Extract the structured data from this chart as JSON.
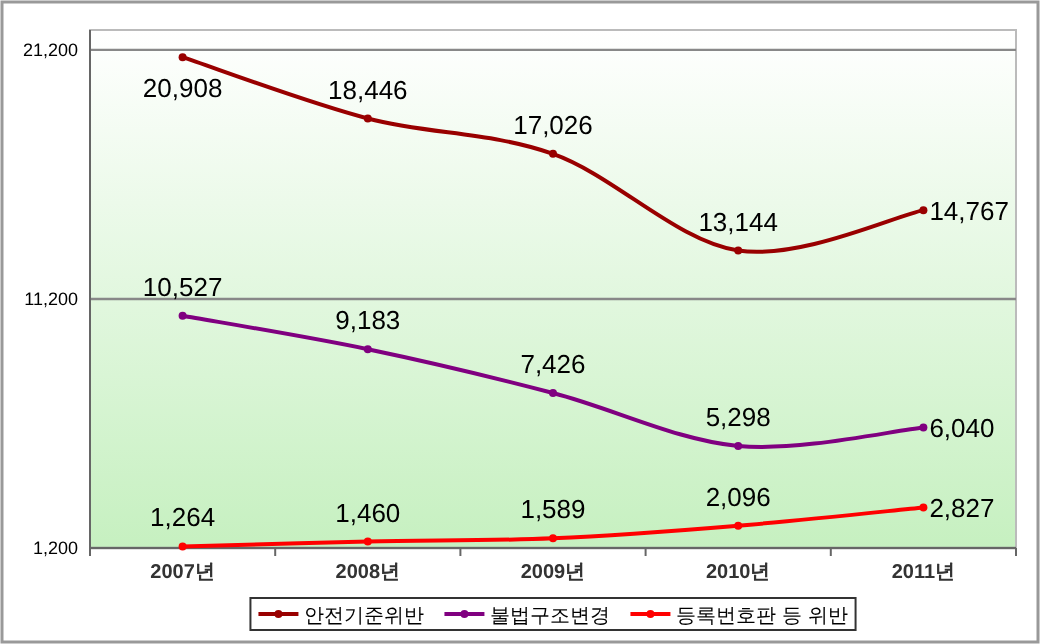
{
  "chart_data": {
    "type": "line",
    "categories": [
      "2007년",
      "2008년",
      "2009년",
      "2010년",
      "2011년"
    ],
    "series": [
      {
        "name": "안전기준위반",
        "color": "#990000",
        "values": [
          20908,
          18446,
          17026,
          13144,
          14767
        ],
        "value_labels": [
          "20,908",
          "18,446",
          "17,026",
          "13,144",
          "14,767"
        ]
      },
      {
        "name": "불법구조변경",
        "color": "#800080",
        "values": [
          10527,
          9183,
          7426,
          5298,
          6040
        ],
        "value_labels": [
          "10,527",
          "9,183",
          "7,426",
          "5,298",
          "6,040"
        ]
      },
      {
        "name": "등록번호판 등 위반",
        "color": "#ff0000",
        "values": [
          1264,
          1460,
          1589,
          2096,
          2827
        ],
        "value_labels": [
          "1,264",
          "1,460",
          "1,589",
          "2,096",
          "2,827"
        ]
      }
    ],
    "ylim": [
      1200,
      22000
    ],
    "yticks": [
      {
        "value": 1200,
        "label": "1,200"
      },
      {
        "value": 11200,
        "label": "11,200"
      },
      {
        "value": 21200,
        "label": "21,200"
      }
    ],
    "grid": "y",
    "legend": "bottom",
    "marker": "circle",
    "line_style": "solid"
  }
}
